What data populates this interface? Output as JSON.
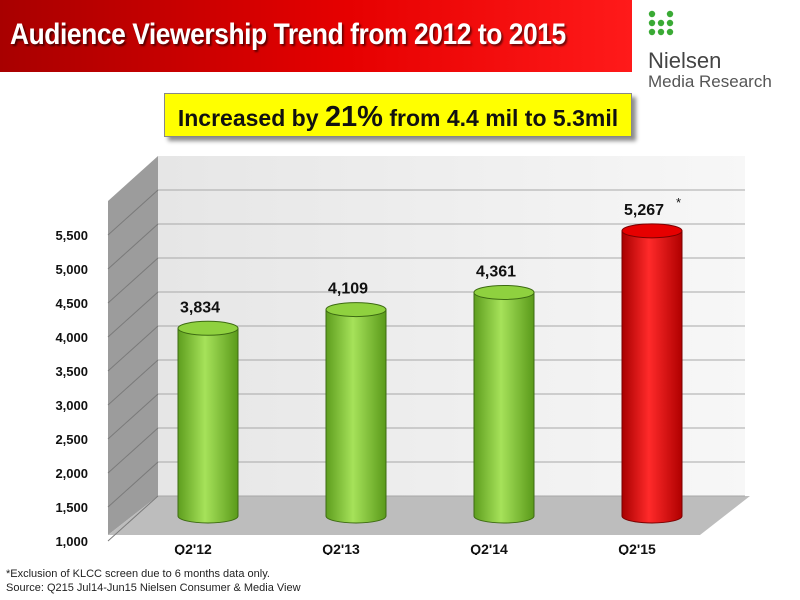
{
  "header": {
    "title": "Audience Viewership Trend from 2012 to 2015",
    "brand_name": "Nielsen",
    "brand_sub": "Media Research"
  },
  "callout": {
    "pre": "Increased by ",
    "highlight": "21%",
    "post": " from 4.4 mil to 5.3mil"
  },
  "colors": {
    "banner": "#d40000",
    "callout_bg": "#ffff00",
    "bar_green": "#8fd13f",
    "bar_red": "#e60000"
  },
  "chart_data": {
    "type": "bar",
    "categories": [
      "Q2'12",
      "Q2'13",
      "Q2'14",
      "Q2'15"
    ],
    "values": [
      3834,
      4109,
      4361,
      5267
    ],
    "value_labels": [
      "3,834",
      "4,109",
      "4,361",
      "5,267"
    ],
    "value_marks": [
      "",
      "",
      "",
      "*"
    ],
    "highlight_index": 3,
    "ylim": [
      1000,
      5500
    ],
    "yticks": [
      "1,000",
      "1,500",
      "2,000",
      "2,500",
      "3,000",
      "3,500",
      "4,000",
      "4,500",
      "5,000",
      "5,500"
    ],
    "grid": true,
    "legend": "none"
  },
  "footnotes": [
    "*Exclusion of KLCC screen due to 6 months data only.",
    "Source: Q215 Jul14-Jun15 Nielsen Consumer & Media View"
  ]
}
